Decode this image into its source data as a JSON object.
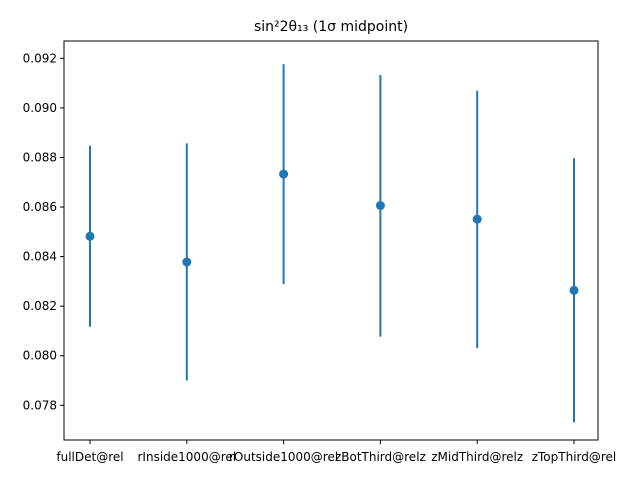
{
  "chart_data": {
    "type": "scatter",
    "title": "sin²2θ₁₃ (1σ midpoint)",
    "xlabel": "",
    "ylabel": "",
    "categories": [
      "fullDet@rel",
      "rInside1000@rel",
      "rOutside1000@rel",
      "zBotThird@relz",
      "zMidThird@relz",
      "zTopThird@rel"
    ],
    "series": [
      {
        "values": [
          0.08482,
          0.08378,
          0.08733,
          0.08606,
          0.08551,
          0.08264
        ],
        "lower": [
          0.08117,
          0.079,
          0.08289,
          0.08077,
          0.0803,
          0.07731
        ],
        "upper": [
          0.08848,
          0.08857,
          0.09176,
          0.09133,
          0.0907,
          0.08797
        ]
      }
    ],
    "ylim": [
      0.0766,
      0.0927
    ],
    "yticks": [
      "0.078",
      "0.080",
      "0.082",
      "0.084",
      "0.086",
      "0.088",
      "0.090",
      "0.092"
    ],
    "grid": false,
    "color": "#1f77b4"
  }
}
